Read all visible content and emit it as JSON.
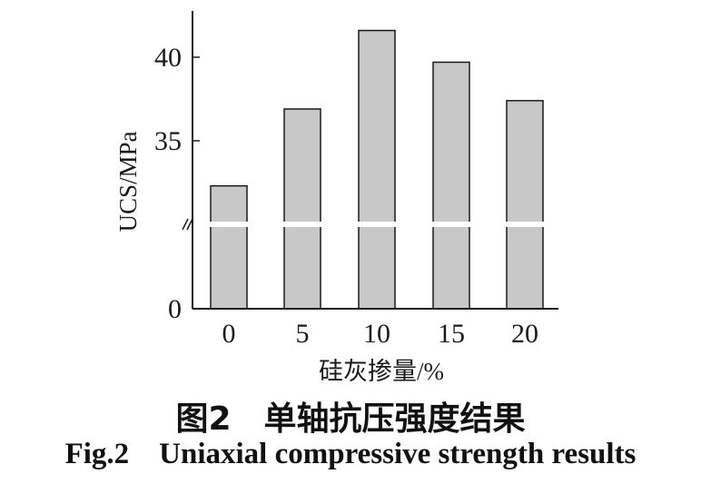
{
  "chart_data": {
    "type": "bar",
    "categories": [
      "0",
      "5",
      "10",
      "15",
      "20"
    ],
    "values": [
      32.3,
      36.9,
      41.6,
      39.7,
      37.4
    ],
    "xlabel": "硅灰掺量/%",
    "ylabel": "UCS/MPa",
    "y_ticks": [
      "0",
      "35",
      "40"
    ],
    "axis_break": true,
    "bar_color": "#c8c8c8",
    "edge_color": "#1a1a1a",
    "grid": false
  },
  "caption": {
    "cn": "图2　单轴抗压强度结果",
    "en": "Fig.2    Uniaxial compressive strength results"
  }
}
